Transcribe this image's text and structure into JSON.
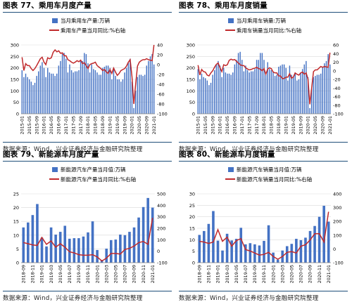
{
  "colors": {
    "bar": "#4472c4",
    "line": "#c0292b",
    "rule": "#1f4e79",
    "grid": "#d9d9d9"
  },
  "chart_data": [
    {
      "type": "bar",
      "title": "图表 77、乘用车月度产量",
      "source": "数据来源：Wind，兴业证券经济与金融研究院整理",
      "legend": {
        "placement": "top",
        "bar": "当月乘用车产量:万辆",
        "line": "乘用车产量当月同比:%右轴"
      },
      "x": [
        "2015-01",
        "2015-02",
        "2015-03",
        "2015-04",
        "2015-05",
        "2015-06",
        "2015-07",
        "2015-08",
        "2015-09",
        "2015-10",
        "2015-11",
        "2015-12",
        "2016-01",
        "2016-02",
        "2016-03",
        "2016-04",
        "2016-05",
        "2016-06",
        "2016-07",
        "2016-08",
        "2016-09",
        "2016-10",
        "2016-11",
        "2016-12",
        "2017-01",
        "2017-02",
        "2017-03",
        "2017-04",
        "2017-05",
        "2017-06",
        "2017-07",
        "2017-08",
        "2017-09",
        "2017-10",
        "2017-11",
        "2017-12",
        "2018-01",
        "2018-02",
        "2018-03",
        "2018-04",
        "2018-05",
        "2018-06",
        "2018-07",
        "2018-08",
        "2018-09",
        "2018-10",
        "2018-11",
        "2018-12",
        "2019-01",
        "2019-02",
        "2019-03",
        "2019-04",
        "2019-05",
        "2019-06",
        "2019-07",
        "2019-08",
        "2019-09",
        "2019-10",
        "2019-11",
        "2019-12",
        "2020-01",
        "2020-02",
        "2020-03",
        "2020-04",
        "2020-05",
        "2020-06",
        "2020-07",
        "2020-08",
        "2020-09",
        "2020-10",
        "2020-11",
        "2020-12",
        "2021-01"
      ],
      "xticks": [
        "2015-01",
        "2015-05",
        "2015-09",
        "2016-01",
        "2016-05",
        "2016-09",
        "2017-01",
        "2017-05",
        "2017-09",
        "2018-01",
        "2018-05",
        "2018-09",
        "2019-01",
        "2019-05",
        "2019-09",
        "2020-01",
        "2020-05",
        "2020-09",
        "2021-01"
      ],
      "series": [
        {
          "name": "当月乘用车产量:万辆",
          "kind": "bar",
          "axis": "left",
          "values": [
            190,
            160,
            175,
            160,
            150,
            140,
            125,
            135,
            165,
            185,
            210,
            225,
            200,
            160,
            200,
            180,
            175,
            175,
            165,
            175,
            210,
            230,
            260,
            265,
            240,
            180,
            215,
            190,
            180,
            185,
            185,
            190,
            230,
            230,
            265,
            260,
            220,
            180,
            215,
            195,
            190,
            180,
            170,
            170,
            200,
            205,
            210,
            210,
            200,
            150,
            200,
            165,
            150,
            150,
            140,
            150,
            180,
            200,
            225,
            240,
            140,
            25,
            100,
            160,
            170,
            170,
            165,
            170,
            210,
            230,
            250,
            260,
            215
          ]
        },
        {
          "name": "乘用车产量当月同比:%右轴",
          "kind": "line",
          "axis": "right",
          "values": [
            15,
            -12,
            2,
            -2,
            -2,
            -8,
            -12,
            -8,
            -2,
            5,
            12,
            15,
            5,
            0,
            14,
            12,
            14,
            25,
            30,
            26,
            28,
            23,
            24,
            18,
            18,
            10,
            8,
            5,
            3,
            5,
            8,
            6,
            9,
            2,
            4,
            -2,
            -8,
            0,
            2,
            3,
            5,
            -2,
            -5,
            -8,
            -12,
            -10,
            -15,
            -18,
            -10,
            -18,
            -7,
            -15,
            -22,
            -18,
            -12,
            -10,
            -8,
            -3,
            5,
            10,
            -25,
            -80,
            -40,
            -3,
            5,
            8,
            10,
            10,
            12,
            10,
            9,
            8,
            40
          ]
        }
      ],
      "ylim_left": [
        0,
        300
      ],
      "yticks_left": [
        0,
        50,
        100,
        150,
        200,
        250,
        300
      ],
      "ylim_right": [
        -100,
        40
      ],
      "yticks_right": [
        -100,
        -80,
        -60,
        -40,
        -20,
        0,
        20,
        40
      ],
      "grid": true
    },
    {
      "type": "bar",
      "title": "图表 78、乘用车月度销量",
      "source": "数据来源：Wind，兴业证券经济与金融研究院整理",
      "legend": {
        "placement": "top",
        "bar": "当月乘用车销量:万辆",
        "line": "乘用车销量当月同比:%右轴"
      },
      "x": [
        "2015-01",
        "2015-02",
        "2015-03",
        "2015-04",
        "2015-05",
        "2015-06",
        "2015-07",
        "2015-08",
        "2015-09",
        "2015-10",
        "2015-11",
        "2015-12",
        "2016-01",
        "2016-02",
        "2016-03",
        "2016-04",
        "2016-05",
        "2016-06",
        "2016-07",
        "2016-08",
        "2016-09",
        "2016-10",
        "2016-11",
        "2016-12",
        "2017-01",
        "2017-02",
        "2017-03",
        "2017-04",
        "2017-05",
        "2017-06",
        "2017-07",
        "2017-08",
        "2017-09",
        "2017-10",
        "2017-11",
        "2017-12",
        "2018-01",
        "2018-02",
        "2018-03",
        "2018-04",
        "2018-05",
        "2018-06",
        "2018-07",
        "2018-08",
        "2018-09",
        "2018-10",
        "2018-11",
        "2018-12",
        "2019-01",
        "2019-02",
        "2019-03",
        "2019-04",
        "2019-05",
        "2019-06",
        "2019-07",
        "2019-08",
        "2019-09",
        "2019-10",
        "2019-11",
        "2019-12",
        "2020-01",
        "2020-02",
        "2020-03",
        "2020-04",
        "2020-05",
        "2020-06",
        "2020-07",
        "2020-08",
        "2020-09",
        "2020-10",
        "2020-11",
        "2020-12",
        "2021-01"
      ],
      "xticks": [
        "2015-01",
        "2015-05",
        "2015-09",
        "2016-01",
        "2016-05",
        "2016-09",
        "2017-01",
        "2017-05",
        "2017-09",
        "2018-01",
        "2018-05",
        "2018-09",
        "2019-01",
        "2019-05",
        "2019-09",
        "2020-01",
        "2020-05",
        "2020-09",
        "2021-01"
      ],
      "series": [
        {
          "name": "当月乘用车销量:万辆",
          "kind": "bar",
          "axis": "left",
          "values": [
            195,
            150,
            175,
            160,
            155,
            145,
            125,
            135,
            170,
            190,
            215,
            230,
            210,
            160,
            200,
            180,
            175,
            175,
            170,
            180,
            215,
            235,
            265,
            270,
            235,
            185,
            210,
            190,
            180,
            185,
            185,
            195,
            235,
            235,
            265,
            265,
            235,
            170,
            225,
            195,
            190,
            185,
            165,
            170,
            205,
            210,
            215,
            215,
            200,
            145,
            210,
            170,
            160,
            175,
            145,
            150,
            180,
            195,
            215,
            230,
            160,
            25,
            110,
            160,
            165,
            170,
            170,
            175,
            205,
            220,
            230,
            260,
            215
          ]
        },
        {
          "name": "乘用车销量当月同比:%右轴",
          "kind": "line",
          "axis": "right",
          "values": [
            13,
            -10,
            3,
            -2,
            -3,
            -10,
            -12,
            -5,
            0,
            8,
            15,
            18,
            7,
            -2,
            14,
            12,
            14,
            24,
            27,
            25,
            26,
            22,
            18,
            14,
            12,
            12,
            7,
            4,
            2,
            3,
            5,
            6,
            8,
            5,
            4,
            0,
            5,
            -8,
            4,
            7,
            5,
            -3,
            -5,
            -5,
            -12,
            -12,
            -18,
            -18,
            -15,
            -15,
            -7,
            -17,
            -15,
            -5,
            -8,
            -10,
            -5,
            -3,
            -8,
            -5,
            -20,
            -78,
            -40,
            -2,
            2,
            2,
            6,
            10,
            8,
            10,
            9,
            8,
            42
          ]
        }
      ],
      "ylim_left": [
        0,
        300
      ],
      "yticks_left": [
        0,
        50,
        100,
        150,
        200,
        250,
        300
      ],
      "ylim_right": [
        -100,
        60
      ],
      "yticks_right": [
        -100,
        -80,
        -60,
        -40,
        -20,
        0,
        20,
        40,
        60
      ],
      "grid": true
    },
    {
      "type": "bar",
      "title": "图表 79、新能源车月度产量",
      "source": "数据来源：Wind，兴业证券经济与金融研究院整理",
      "legend": {
        "placement": "top",
        "bar": "新能源汽车产量当月值:万辆",
        "line": "新能源汽车产量当月同比:%右轴"
      },
      "x": [
        "2018-09",
        "2018-10",
        "2018-11",
        "2018-12",
        "2019-01",
        "2019-02",
        "2019-03",
        "2019-04",
        "2019-05",
        "2019-06",
        "2019-07",
        "2019-08",
        "2019-09",
        "2019-10",
        "2019-11",
        "2019-12",
        "2020-01",
        "2020-02",
        "2020-03",
        "2020-04",
        "2020-05",
        "2020-06",
        "2020-07",
        "2020-08",
        "2020-09",
        "2020-10",
        "2020-11",
        "2020-12",
        "2021-01"
      ],
      "xticks": [
        "2018-09",
        "2018-11",
        "2019-01",
        "2019-03",
        "2019-05",
        "2019-07",
        "2019-09",
        "2019-11",
        "2020-01",
        "2020-03",
        "2020-05",
        "2020-07",
        "2020-09",
        "2020-11",
        "2021-01"
      ],
      "series": [
        {
          "name": "新能源汽车产量当月值:万辆",
          "kind": "bar",
          "axis": "left",
          "values": [
            12.8,
            14.6,
            17.3,
            21.3,
            9.1,
            5.9,
            12.8,
            10.2,
            11.2,
            13.4,
            8.7,
            8.9,
            8.9,
            9.5,
            11.0,
            15.0,
            4.6,
            1.0,
            5.1,
            8.2,
            8.4,
            10.2,
            10.0,
            11.2,
            12.8,
            16.4,
            20.2,
            23.5,
            20.0
          ]
        },
        {
          "name": "新能源汽车产量当月同比:%右轴",
          "kind": "line",
          "axis": "right",
          "values": [
            75,
            65,
            55,
            50,
            120,
            60,
            90,
            35,
            65,
            35,
            -5,
            -15,
            -30,
            -35,
            -35,
            -30,
            -50,
            -85,
            -60,
            -20,
            -20,
            -25,
            15,
            25,
            45,
            75,
            85,
            60,
            290
          ]
        }
      ],
      "ylim_left": [
        0,
        25
      ],
      "yticks_left": [
        0,
        5,
        10,
        15,
        20,
        25
      ],
      "ylim_right": [
        -100,
        500
      ],
      "yticks_right": [
        -100,
        0,
        100,
        200,
        300,
        400,
        500
      ],
      "grid": true
    },
    {
      "type": "bar",
      "title": "图表 80、新能源车月度销量",
      "source": "数据来源：Wind，兴业证券经济与金融研究院整理",
      "legend": {
        "placement": "top",
        "bar": "新能源汽车销量当月值:万辆",
        "line": "新能源汽车销量当月同比:%右轴"
      },
      "x": [
        "2018-09",
        "2018-10",
        "2018-11",
        "2018-12",
        "2019-01",
        "2019-02",
        "2019-03",
        "2019-04",
        "2019-05",
        "2019-06",
        "2019-07",
        "2019-08",
        "2019-09",
        "2019-10",
        "2019-11",
        "2019-12",
        "2020-01",
        "2020-02",
        "2020-03",
        "2020-04",
        "2020-05",
        "2020-06",
        "2020-07",
        "2020-08",
        "2020-09",
        "2020-10",
        "2020-11",
        "2020-12",
        "2021-01"
      ],
      "xticks": [
        "2018-09",
        "2018-11",
        "2019-01",
        "2019-03",
        "2019-05",
        "2019-07",
        "2019-09",
        "2019-11",
        "2020-01",
        "2020-03",
        "2020-05",
        "2020-07",
        "2020-09",
        "2020-11",
        "2021-01"
      ],
      "series": [
        {
          "name": "新能源汽车销量当月值:万辆",
          "kind": "bar",
          "axis": "left",
          "values": [
            12.1,
            13.8,
            16.9,
            22.5,
            9.6,
            5.3,
            12.6,
            9.7,
            10.4,
            15.2,
            8.0,
            8.5,
            8.0,
            7.5,
            9.5,
            16.3,
            4.4,
            1.3,
            5.3,
            7.2,
            8.2,
            10.4,
            9.8,
            10.9,
            13.8,
            16.0,
            20.0,
            24.8,
            17.9
          ]
        },
        {
          "name": "新能源汽车销量当月同比:%右轴",
          "kind": "line",
          "axis": "right",
          "values": [
            55,
            50,
            40,
            50,
            140,
            55,
            85,
            20,
            60,
            75,
            -5,
            -15,
            -30,
            -45,
            -40,
            -25,
            -55,
            -75,
            -55,
            -25,
            -20,
            -30,
            20,
            30,
            65,
            110,
            110,
            50,
            270
          ]
        }
      ],
      "ylim_left": [
        0,
        30
      ],
      "yticks_left": [
        0,
        5,
        10,
        15,
        20,
        25,
        30
      ],
      "ylim_right": [
        -100,
        400
      ],
      "yticks_right": [
        -100,
        0,
        100,
        200,
        300,
        400
      ],
      "grid": true
    }
  ]
}
